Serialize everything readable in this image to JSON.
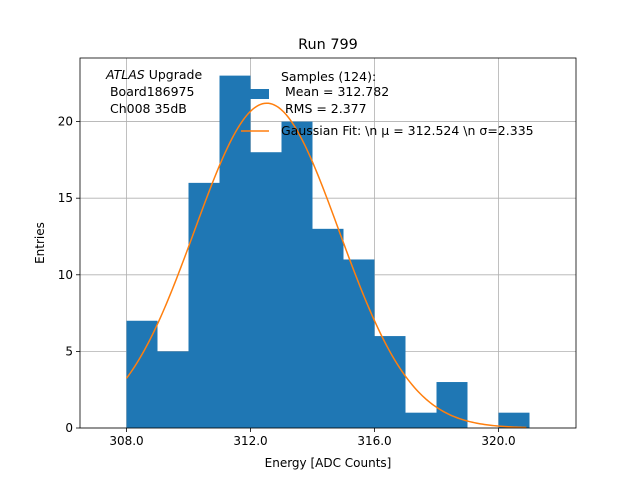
{
  "chart_data": {
    "type": "bar",
    "title": "Run 799",
    "xlabel": "Energy [ADC Counts]",
    "ylabel": "Entries",
    "xlim": [
      306.5,
      322.5
    ],
    "ylim": [
      0,
      24.15
    ],
    "grid": true,
    "xticks": [
      308,
      312,
      316,
      320
    ],
    "xtick_labels": [
      "308.0",
      "312.0",
      "316.0",
      "320.0"
    ],
    "yticks": [
      0,
      5,
      10,
      15,
      20
    ],
    "ytick_labels": [
      "0",
      "5",
      "10",
      "15",
      "20"
    ],
    "histogram": {
      "bin_edges": [
        308,
        309,
        310,
        311,
        312,
        313,
        314,
        315,
        316,
        317,
        318,
        319,
        320,
        321
      ],
      "counts": [
        7,
        5,
        16,
        23,
        18,
        20,
        13,
        11,
        6,
        1,
        3,
        0,
        1
      ],
      "color": "#1f77b4"
    },
    "fit": {
      "type": "gaussian",
      "mu": 312.524,
      "sigma": 2.335,
      "amplitude": 21.2,
      "x_range": [
        308,
        320.9
      ],
      "color": "#ff7f0e"
    },
    "annotation": {
      "italic": "ATLAS",
      "line1_rest": " Upgrade",
      "line2": " Board186975",
      "line3": " Ch008 35dB"
    },
    "legend": {
      "placement": "top-right",
      "hist_line1": "Samples (124):",
      "hist_line2": " Mean = 312.782",
      "hist_line3": " RMS = 2.377",
      "fit_label": "Gaussian Fit: \\n μ = 312.524 \\n σ=2.335"
    }
  }
}
